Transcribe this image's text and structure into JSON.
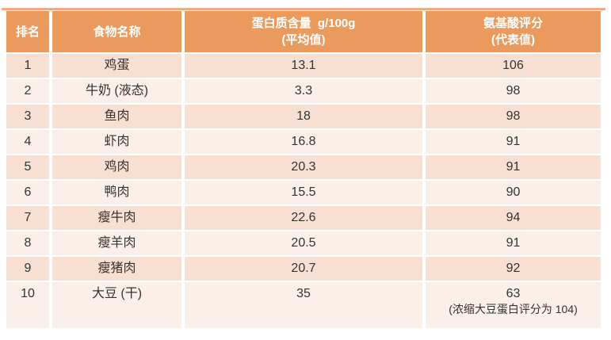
{
  "colors": {
    "header_bg": "#EA9A5C",
    "top_rule": "#F0AD7B",
    "row_odd_bg": "#F7DFD2",
    "row_even_bg": "#FBEFE9",
    "header_text": "#FFFFFF",
    "body_text": "#333333"
  },
  "table": {
    "headers": {
      "rank": "排名",
      "food": "食物名称",
      "protein_line1": "蛋白质含量  g/100g",
      "protein_line2": "(平均值)",
      "score_line1": "氨基酸评分",
      "score_line2": "(代表值)"
    },
    "rows": [
      {
        "rank": "1",
        "food": "鸡蛋",
        "protein": "13.1",
        "score": "106",
        "note": ""
      },
      {
        "rank": "2",
        "food": "牛奶 (液态)",
        "protein": "3.3",
        "score": "98",
        "note": ""
      },
      {
        "rank": "3",
        "food": "鱼肉",
        "protein": "18",
        "score": "98",
        "note": ""
      },
      {
        "rank": "4",
        "food": "虾肉",
        "protein": "16.8",
        "score": "91",
        "note": ""
      },
      {
        "rank": "5",
        "food": "鸡肉",
        "protein": "20.3",
        "score": "91",
        "note": ""
      },
      {
        "rank": "6",
        "food": "鸭肉",
        "protein": "15.5",
        "score": "90",
        "note": ""
      },
      {
        "rank": "7",
        "food": "瘦牛肉",
        "protein": "22.6",
        "score": "94",
        "note": ""
      },
      {
        "rank": "8",
        "food": "瘦羊肉",
        "protein": "20.5",
        "score": "91",
        "note": ""
      },
      {
        "rank": "9",
        "food": "瘦猪肉",
        "protein": "20.7",
        "score": "92",
        "note": ""
      },
      {
        "rank": "10",
        "food": "大豆 (干)",
        "protein": "35",
        "score": "63",
        "note": "(浓缩大豆蛋白评分为 104)"
      }
    ]
  },
  "chart_data": {
    "type": "table",
    "title": "",
    "columns": [
      "排名",
      "食物名称",
      "蛋白质含量 g/100g (平均值)",
      "氨基酸评分 (代表值)"
    ],
    "rows": [
      [
        1,
        "鸡蛋",
        13.1,
        106
      ],
      [
        2,
        "牛奶 (液态)",
        3.3,
        98
      ],
      [
        3,
        "鱼肉",
        18,
        98
      ],
      [
        4,
        "虾肉",
        16.8,
        91
      ],
      [
        5,
        "鸡肉",
        20.3,
        91
      ],
      [
        6,
        "鸭肉",
        15.5,
        90
      ],
      [
        7,
        "瘦牛肉",
        22.6,
        94
      ],
      [
        8,
        "瘦羊肉",
        20.5,
        91
      ],
      [
        9,
        "瘦猪肉",
        20.7,
        92
      ],
      [
        10,
        "大豆 (干)",
        35,
        "63 (浓缩大豆蛋白评分为 104)"
      ]
    ]
  }
}
